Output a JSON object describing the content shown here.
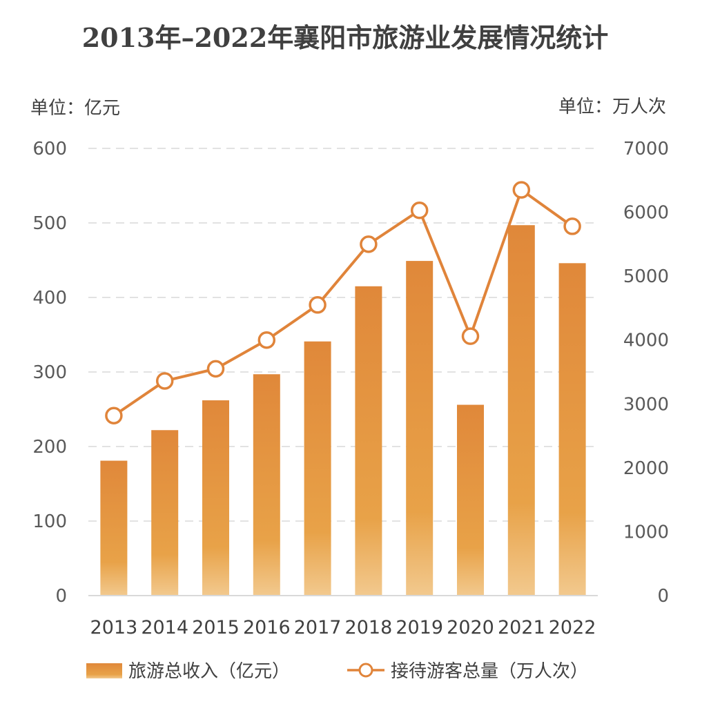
{
  "chart_data": {
    "type": "bar",
    "title": "2013年–2022年襄阳市旅游业发展情况统计",
    "left_unit": "单位：亿元",
    "right_unit": "单位：万人次",
    "categories": [
      "2013",
      "2014",
      "2015",
      "2016",
      "2017",
      "2018",
      "2019",
      "2020",
      "2021",
      "2022"
    ],
    "series": [
      {
        "name": "旅游总收入（亿元）",
        "type": "bar",
        "axis": "left",
        "values": [
          181,
          222,
          262,
          297,
          341,
          415,
          449,
          256,
          497,
          446
        ]
      },
      {
        "name": "接待游客总量（万人次）",
        "type": "line",
        "axis": "right",
        "values": [
          2817,
          3360,
          3550,
          4000,
          4550,
          5500,
          6030,
          4060,
          6350,
          5780
        ]
      }
    ],
    "left_axis": {
      "ticks": [
        "0",
        "100",
        "200",
        "300",
        "400",
        "500",
        "600"
      ],
      "ylim": [
        0,
        600
      ]
    },
    "right_axis": {
      "ticks": [
        "0",
        "1000",
        "2000",
        "3000",
        "4000",
        "5000",
        "6000",
        "7000"
      ],
      "ylim": [
        0,
        7000
      ]
    },
    "grid": true,
    "legend_position": "bottom",
    "colors": {
      "bar_top": "#E0883A",
      "bar_mid": "#E8A248",
      "bar_bottom": "#F2C98E",
      "line": "#E0843A",
      "marker_fill": "#ffffff"
    }
  }
}
